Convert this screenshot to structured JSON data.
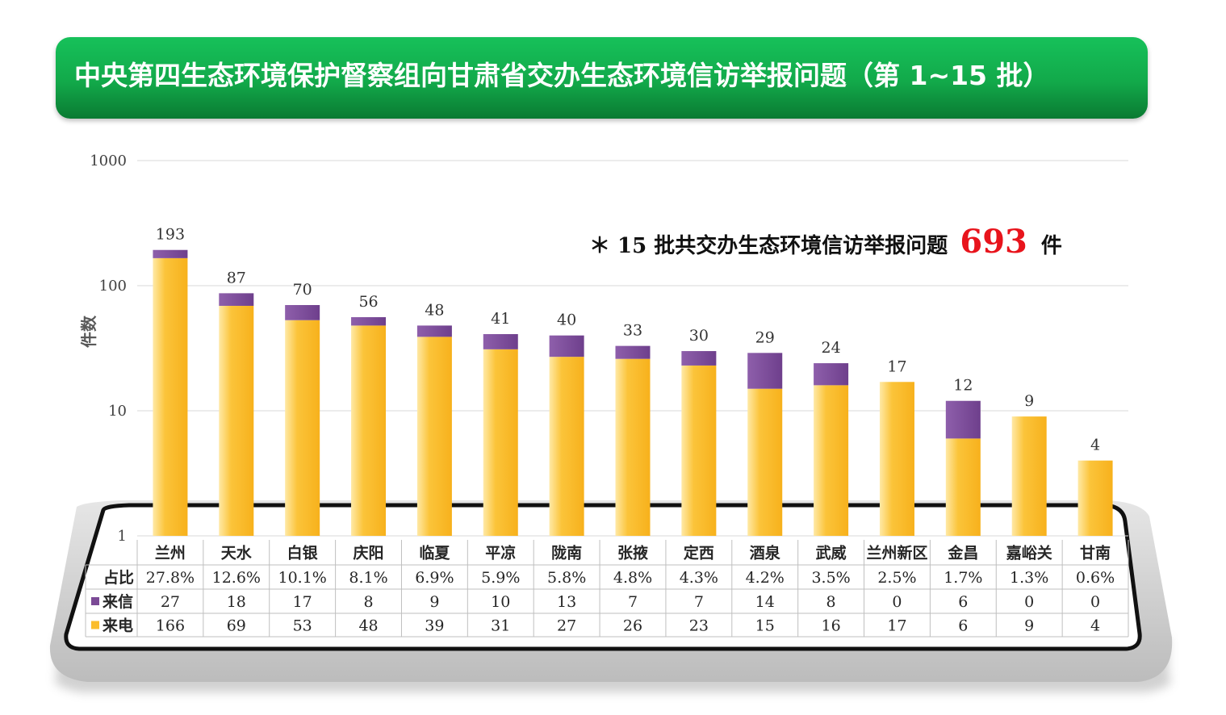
{
  "title": "中央第四生态环境保护督察组向甘肃省交办生态环境信访举报问题（第 1~15 批）",
  "annotation": {
    "prefix": "＊ 15 批共交办生态环境信访举报问题",
    "total": "693",
    "suffix": "件"
  },
  "chart_data": {
    "type": "bar",
    "stacked": true,
    "yscale": "log",
    "ylim": [
      1,
      1000
    ],
    "yticks": [
      "1",
      "10",
      "100",
      "1000"
    ],
    "ylabel": "件数",
    "grid": true,
    "categories": [
      "兰州",
      "天水",
      "白银",
      "庆阳",
      "临夏",
      "平凉",
      "陇南",
      "张掖",
      "定西",
      "酒泉",
      "武威",
      "兰州新区",
      "金昌",
      "嘉峪关",
      "甘南"
    ],
    "totals": [
      193,
      87,
      70,
      56,
      48,
      41,
      40,
      33,
      30,
      29,
      24,
      17,
      12,
      9,
      4
    ],
    "share_label": "占比",
    "shares": [
      "27.8%",
      "12.6%",
      "10.1%",
      "8.1%",
      "6.9%",
      "5.9%",
      "5.8%",
      "4.8%",
      "4.3%",
      "4.2%",
      "3.5%",
      "2.5%",
      "1.7%",
      "1.3%",
      "0.6%"
    ],
    "series": [
      {
        "name": "来信",
        "color": "#7b4a96",
        "values": [
          27,
          18,
          17,
          8,
          9,
          10,
          13,
          7,
          7,
          14,
          8,
          0,
          6,
          0,
          0
        ]
      },
      {
        "name": "来电",
        "color": "#fbbd2c",
        "values": [
          166,
          69,
          53,
          48,
          39,
          31,
          27,
          26,
          23,
          15,
          16,
          17,
          6,
          9,
          4
        ]
      }
    ]
  },
  "colors": {
    "banner": "#12a94a",
    "total_highlight": "#e8141c",
    "letter": "#7b4a96",
    "phone": "#fbbd2c"
  }
}
